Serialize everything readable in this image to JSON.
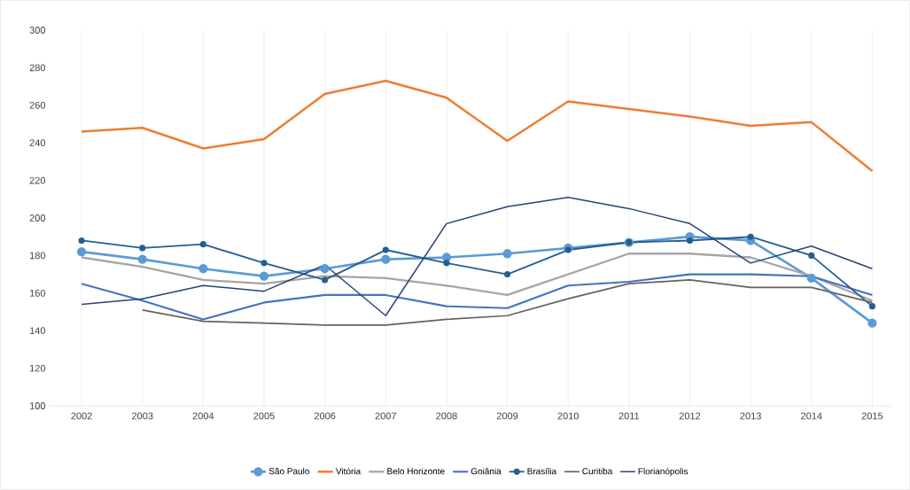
{
  "chart_data": {
    "type": "line",
    "categories": [
      "2002",
      "2003",
      "2004",
      "2005",
      "2006",
      "2007",
      "2008",
      "2009",
      "2010",
      "2011",
      "2012",
      "2013",
      "2014",
      "2015"
    ],
    "series": [
      {
        "name": "São Paulo",
        "color": "#5b9bd5",
        "marker": "circle",
        "values": [
          182,
          178,
          173,
          169,
          173,
          178,
          179,
          181,
          184,
          187,
          190,
          188,
          168,
          144
        ]
      },
      {
        "name": "Vitória",
        "color": "#ed7d31",
        "values": [
          246,
          248,
          237,
          242,
          266,
          273,
          264,
          241,
          262,
          258,
          254,
          249,
          251,
          225
        ]
      },
      {
        "name": "Belo Horizonte",
        "color": "#a5a5a5",
        "values": [
          179,
          174,
          167,
          165,
          169,
          168,
          164,
          159,
          170,
          181,
          181,
          179,
          169,
          156
        ]
      },
      {
        "name": "Goiânia",
        "color": "#4472c4",
        "values": [
          165,
          156,
          146,
          155,
          159,
          159,
          153,
          152,
          164,
          166,
          170,
          170,
          169,
          159
        ]
      },
      {
        "name": "Brasília",
        "color": "#255e91",
        "marker": "circle",
        "values": [
          188,
          184,
          186,
          176,
          167,
          183,
          176,
          170,
          183,
          187,
          188,
          190,
          180,
          153
        ]
      },
      {
        "name": "Curitiba",
        "color": "#636363",
        "values": [
          null,
          151,
          145,
          144,
          143,
          143,
          146,
          148,
          157,
          165,
          167,
          163,
          163,
          155
        ]
      },
      {
        "name": "Florianópolis",
        "color": "#264478",
        "values": [
          154,
          157,
          164,
          161,
          175,
          148,
          197,
          206,
          211,
          205,
          197,
          176,
          185,
          173
        ]
      }
    ],
    "ylim": [
      100,
      300
    ],
    "yticks": [
      100,
      120,
      140,
      160,
      180,
      200,
      220,
      240,
      260,
      280,
      300
    ],
    "grid": "x",
    "legend": "bottom",
    "marker": "none",
    "line_style": "solid"
  }
}
